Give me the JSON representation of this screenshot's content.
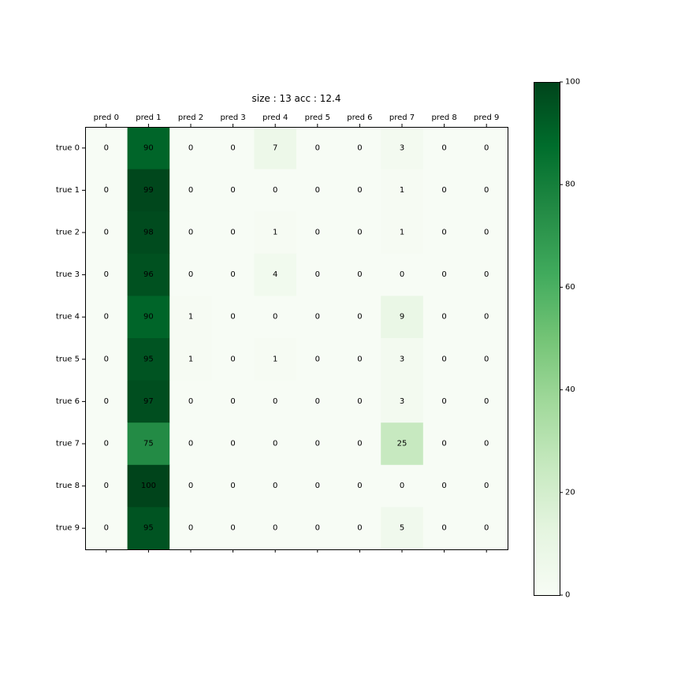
{
  "chart_data": {
    "type": "heatmap",
    "title": "size : 13 acc : 12.4",
    "x_categories": [
      "pred 0",
      "pred 1",
      "pred 2",
      "pred 3",
      "pred 4",
      "pred 5",
      "pred 6",
      "pred 7",
      "pred 8",
      "pred 9"
    ],
    "y_categories": [
      "true 0",
      "true 1",
      "true 2",
      "true 3",
      "true 4",
      "true 5",
      "true 6",
      "true 7",
      "true 8",
      "true 9"
    ],
    "values": [
      [
        0,
        90,
        0,
        0,
        7,
        0,
        0,
        3,
        0,
        0
      ],
      [
        0,
        99,
        0,
        0,
        0,
        0,
        0,
        1,
        0,
        0
      ],
      [
        0,
        98,
        0,
        0,
        1,
        0,
        0,
        1,
        0,
        0
      ],
      [
        0,
        96,
        0,
        0,
        4,
        0,
        0,
        0,
        0,
        0
      ],
      [
        0,
        90,
        1,
        0,
        0,
        0,
        0,
        9,
        0,
        0
      ],
      [
        0,
        95,
        1,
        0,
        1,
        0,
        0,
        3,
        0,
        0
      ],
      [
        0,
        97,
        0,
        0,
        0,
        0,
        0,
        3,
        0,
        0
      ],
      [
        0,
        75,
        0,
        0,
        0,
        0,
        0,
        25,
        0,
        0
      ],
      [
        0,
        100,
        0,
        0,
        0,
        0,
        0,
        0,
        0,
        0
      ],
      [
        0,
        95,
        0,
        0,
        0,
        0,
        0,
        5,
        0,
        0
      ]
    ],
    "colormap": "Greens",
    "color_range": [
      0,
      100
    ],
    "colorbar_ticks": [
      "0",
      "20",
      "40",
      "60",
      "80",
      "100"
    ],
    "grid": false,
    "colorbar_position": "right"
  }
}
